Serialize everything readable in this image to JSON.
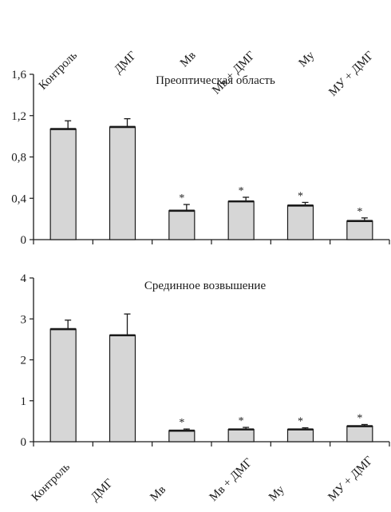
{
  "categories": [
    "Контроль",
    "ДМГ",
    "Мв",
    "Мв + ДМГ",
    "Му",
    "МУ + ДМГ"
  ],
  "colors": {
    "bar_fill": "#d6d6d6",
    "bar_stroke": "#1a1a1a",
    "axis": "#1a1a1a"
  },
  "chart_data": [
    {
      "type": "bar",
      "title": "Преоптическая область",
      "categories": [
        "Контроль",
        "ДМГ",
        "Мв",
        "Мв + ДМГ",
        "Му",
        "МУ + ДМГ"
      ],
      "values": [
        1.07,
        1.09,
        0.28,
        0.37,
        0.33,
        0.18
      ],
      "errors": [
        0.08,
        0.08,
        0.06,
        0.04,
        0.03,
        0.03
      ],
      "significance": [
        "",
        "",
        "*",
        "*",
        "*",
        "*"
      ],
      "ylim": [
        0,
        1.6
      ],
      "yticks": [
        "0",
        "0,4",
        "0,8",
        "1,2",
        "1,6"
      ],
      "grid": false,
      "xlabel": "",
      "ylabel": ""
    },
    {
      "type": "bar",
      "title": "Срединное возвышение",
      "categories": [
        "Контроль",
        "ДМГ",
        "Мв",
        "Мв + ДМГ",
        "Му",
        "МУ + ДМГ"
      ],
      "values": [
        2.75,
        2.6,
        0.27,
        0.3,
        0.3,
        0.38
      ],
      "errors": [
        0.22,
        0.52,
        0.04,
        0.05,
        0.04,
        0.04
      ],
      "significance": [
        "",
        "",
        "*",
        "*",
        "*",
        "*"
      ],
      "ylim": [
        0,
        4
      ],
      "yticks": [
        "0",
        "1",
        "2",
        "3",
        "4"
      ],
      "grid": false,
      "xlabel": "",
      "ylabel": ""
    }
  ]
}
